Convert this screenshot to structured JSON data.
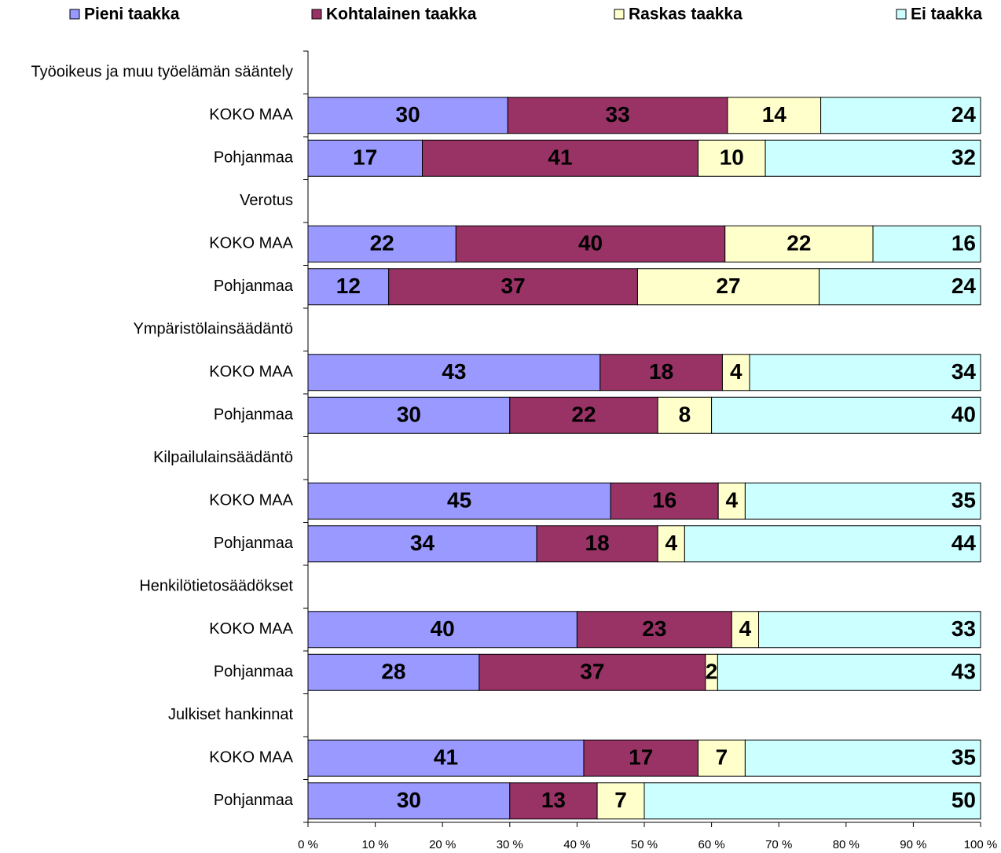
{
  "chart_data": {
    "type": "stacked-barh",
    "stack": "percent",
    "categories": [
      "Työoikeus ja muu työelämän sääntely",
      "KOKO MAA",
      "Pohjanmaa",
      "Verotus",
      "KOKO MAA",
      "Pohjanmaa",
      "Ympäristölainsäädäntö",
      "KOKO MAA",
      "Pohjanmaa",
      "Kilpailulainsäädäntö",
      "KOKO MAA",
      "Pohjanmaa",
      "Henkilötietosäädökset",
      "KOKO MAA",
      "Pohjanmaa",
      "Julkiset hankinnat",
      "KOKO MAA",
      "Pohjanmaa"
    ],
    "series": [
      {
        "name": "Pieni taakka",
        "color": "#9999ff",
        "values": [
          null,
          30,
          17,
          null,
          22,
          12,
          null,
          43,
          30,
          null,
          45,
          34,
          null,
          40,
          28,
          null,
          41,
          30
        ]
      },
      {
        "name": "Kohtalainen taakka",
        "color": "#993366",
        "values": [
          null,
          33,
          41,
          null,
          40,
          37,
          null,
          18,
          22,
          null,
          16,
          18,
          null,
          23,
          37,
          null,
          17,
          13
        ]
      },
      {
        "name": "Raskas taakka",
        "color": "#ffffcc",
        "values": [
          null,
          14,
          10,
          null,
          22,
          27,
          null,
          4,
          8,
          null,
          4,
          4,
          null,
          4,
          2,
          null,
          7,
          7
        ]
      },
      {
        "name": "Ei taakka",
        "color": "#ccffff",
        "values": [
          null,
          24,
          32,
          null,
          16,
          24,
          null,
          34,
          40,
          null,
          35,
          44,
          null,
          33,
          43,
          null,
          35,
          50
        ]
      }
    ],
    "xlim": [
      0,
      100
    ],
    "xticks": [
      {
        "value": 0,
        "label": "0 %"
      },
      {
        "value": 10,
        "label": "10 %"
      },
      {
        "value": 20,
        "label": "20 %"
      },
      {
        "value": 30,
        "label": "30 %"
      },
      {
        "value": 40,
        "label": "40 %"
      },
      {
        "value": 50,
        "label": "50 %"
      },
      {
        "value": 60,
        "label": "60 %"
      },
      {
        "value": 70,
        "label": "70 %"
      },
      {
        "value": 80,
        "label": "80 %"
      },
      {
        "value": 90,
        "label": "90 %"
      },
      {
        "value": 100,
        "label": "100 %"
      }
    ],
    "legend": "top"
  }
}
